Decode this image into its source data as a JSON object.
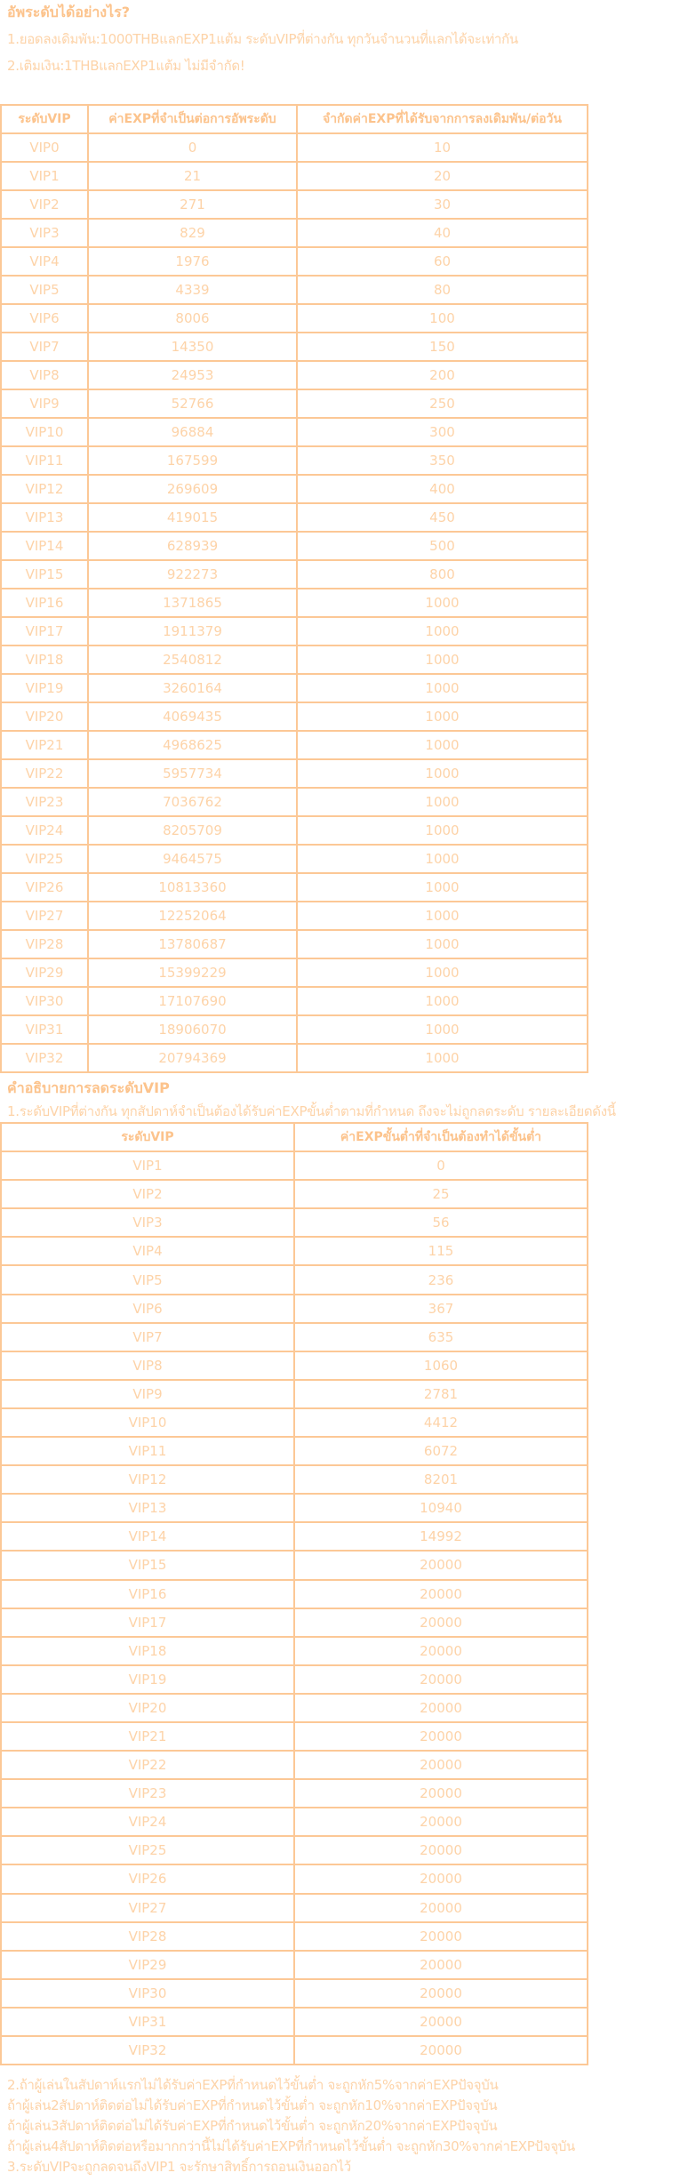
{
  "section1": {
    "title": "อัพระดับได้อย่างไร?",
    "lines": [
      "1.ยอดลงเดิมพัน:1000THBแลกEXP1แต้ม ระดับVIPที่ต่างกัน ทุกวันจำนวนที่แลกได้จะเท่ากัน",
      "2.เติมเงิน:1THBแลกEXP1แต้ม ไม่มีจำกัด!"
    ]
  },
  "table1": {
    "headers": [
      "ระดับVIP",
      "ค่าEXPที่จำเป็นต่อการอัพระดับ",
      "จำกัดค่าEXPที่ได้รับจากการลงเดิมพัน/ต่อวัน"
    ],
    "rows": [
      [
        "VIP0",
        "0",
        "10"
      ],
      [
        "VIP1",
        "21",
        "20"
      ],
      [
        "VIP2",
        "271",
        "30"
      ],
      [
        "VIP3",
        "829",
        "40"
      ],
      [
        "VIP4",
        "1976",
        "60"
      ],
      [
        "VIP5",
        "4339",
        "80"
      ],
      [
        "VIP6",
        "8006",
        "100"
      ],
      [
        "VIP7",
        "14350",
        "150"
      ],
      [
        "VIP8",
        "24953",
        "200"
      ],
      [
        "VIP9",
        "52766",
        "250"
      ],
      [
        "VIP10",
        "96884",
        "300"
      ],
      [
        "VIP11",
        "167599",
        "350"
      ],
      [
        "VIP12",
        "269609",
        "400"
      ],
      [
        "VIP13",
        "419015",
        "450"
      ],
      [
        "VIP14",
        "628939",
        "500"
      ],
      [
        "VIP15",
        "922273",
        "800"
      ],
      [
        "VIP16",
        "1371865",
        "1000"
      ],
      [
        "VIP17",
        "1911379",
        "1000"
      ],
      [
        "VIP18",
        "2540812",
        "1000"
      ],
      [
        "VIP19",
        "3260164",
        "1000"
      ],
      [
        "VIP20",
        "4069435",
        "1000"
      ],
      [
        "VIP21",
        "4968625",
        "1000"
      ],
      [
        "VIP22",
        "5957734",
        "1000"
      ],
      [
        "VIP23",
        "7036762",
        "1000"
      ],
      [
        "VIP24",
        "8205709",
        "1000"
      ],
      [
        "VIP25",
        "9464575",
        "1000"
      ],
      [
        "VIP26",
        "10813360",
        "1000"
      ],
      [
        "VIP27",
        "12252064",
        "1000"
      ],
      [
        "VIP28",
        "13780687",
        "1000"
      ],
      [
        "VIP29",
        "15399229",
        "1000"
      ],
      [
        "VIP30",
        "17107690",
        "1000"
      ],
      [
        "VIP31",
        "18906070",
        "1000"
      ],
      [
        "VIP32",
        "20794369",
        "1000"
      ]
    ]
  },
  "section2": {
    "title": "คำอธิบายการลดระดับVIP",
    "line": "1.ระดับVIPที่ต่างกัน ทุกสัปดาห์จำเป็นต้องได้รับค่าEXPขั้นต่ำตามที่กำหนด ถึงจะไม่ถูกลดระดับ รายละเอียดดังนี้"
  },
  "table2": {
    "headers": [
      "ระดับVIP",
      "ค่าEXPขั้นต่ำที่จำเป็นต้องทำได้ขั้นต่ำ"
    ],
    "rows": [
      [
        "VIP1",
        "0"
      ],
      [
        "VIP2",
        "25"
      ],
      [
        "VIP3",
        "56"
      ],
      [
        "VIP4",
        "115"
      ],
      [
        "VIP5",
        "236"
      ],
      [
        "VIP6",
        "367"
      ],
      [
        "VIP7",
        "635"
      ],
      [
        "VIP8",
        "1060"
      ],
      [
        "VIP9",
        "2781"
      ],
      [
        "VIP10",
        "4412"
      ],
      [
        "VIP11",
        "6072"
      ],
      [
        "VIP12",
        "8201"
      ],
      [
        "VIP13",
        "10940"
      ],
      [
        "VIP14",
        "14992"
      ],
      [
        "VIP15",
        "20000"
      ],
      [
        "VIP16",
        "20000"
      ],
      [
        "VIP17",
        "20000"
      ],
      [
        "VIP18",
        "20000"
      ],
      [
        "VIP19",
        "20000"
      ],
      [
        "VIP20",
        "20000"
      ],
      [
        "VIP21",
        "20000"
      ],
      [
        "VIP22",
        "20000"
      ],
      [
        "VIP23",
        "20000"
      ],
      [
        "VIP24",
        "20000"
      ],
      [
        "VIP25",
        "20000"
      ],
      [
        "VIP26",
        "20000"
      ],
      [
        "VIP27",
        "20000"
      ],
      [
        "VIP28",
        "20000"
      ],
      [
        "VIP29",
        "20000"
      ],
      [
        "VIP30",
        "20000"
      ],
      [
        "VIP31",
        "20000"
      ],
      [
        "VIP32",
        "20000"
      ]
    ]
  },
  "section3": {
    "lines": [
      "2.ถ้าผู้เล่นในสัปดาห์แรกไม่ได้รับค่าEXPที่กำหนดไว้ขั้นต่ำ จะถูกหัก5%จากค่าEXPปัจจุบัน",
      "ถ้าผู้เล่น2สัปดาห์ติดต่อไม่ได้รับค่าEXPที่กำหนดไว้ขั้นต่ำ จะถูกหัก10%จากค่าEXPปัจจุบัน",
      "ถ้าผู้เล่น3สัปดาห์ติดต่อไม่ได้รับค่าEXPที่กำหนดไว้ขั้นต่ำ จะถูกหัก20%จากค่าEXPปัจจุบัน",
      "ถ้าผู้เล่น4สัปดาห์ติดต่อหรือมากกว่านี้ไม่ได้รับค่าEXPที่กำหนดไว้ขั้นต่ำ จะถูกหัก30%จากค่าEXPปัจจุบัน",
      "3.ระดับVIPจะถูกลดจนถึงVIP1 จะรักษาสิทธิ์การถอนเงินออกไว้"
    ]
  },
  "colors": {
    "text": "#fdd3a8",
    "heading": "#fcc38c",
    "border": "#fcc896"
  }
}
